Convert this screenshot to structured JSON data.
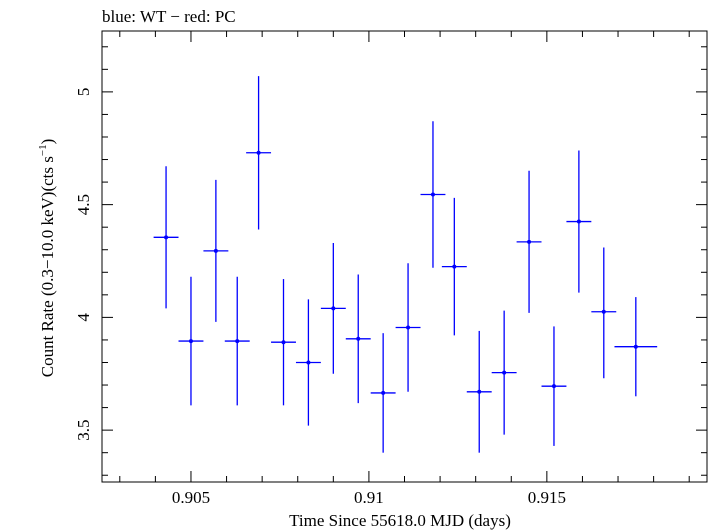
{
  "chart_data": {
    "type": "scatter",
    "title": "blue: WT − red: PC",
    "xlabel": "Time Since 55618.0 MJD (days)",
    "ylabel_main": "Count Rate (0.3−10.0 keV)(cts s",
    "ylabel_sup": "−1",
    "ylabel_close": ")",
    "xlim": [
      0.9025,
      0.9195
    ],
    "ylim": [
      3.27,
      5.27
    ],
    "xticks": [
      0.905,
      0.91,
      0.915
    ],
    "xtick_labels": [
      "0.905",
      "0.91",
      "0.915"
    ],
    "yticks": [
      3.5,
      4,
      4.5,
      5
    ],
    "ytick_labels": [
      "3.5",
      "4",
      "4.5",
      "5"
    ],
    "grid": false,
    "series": [
      {
        "color": "#0000ff",
        "points": [
          {
            "x": 0.9043,
            "y": 4.355,
            "xerr": 0.00035,
            "ylo": 4.04,
            "yhi": 4.67
          },
          {
            "x": 0.905,
            "y": 3.895,
            "xerr": 0.00035,
            "ylo": 3.61,
            "yhi": 4.18
          },
          {
            "x": 0.9057,
            "y": 4.295,
            "xerr": 0.00035,
            "ylo": 3.98,
            "yhi": 4.61
          },
          {
            "x": 0.9063,
            "y": 3.895,
            "xerr": 0.00035,
            "ylo": 3.61,
            "yhi": 4.18
          },
          {
            "x": 0.9069,
            "y": 4.73,
            "xerr": 0.00035,
            "ylo": 4.39,
            "yhi": 5.07
          },
          {
            "x": 0.9076,
            "y": 3.89,
            "xerr": 0.00035,
            "ylo": 3.61,
            "yhi": 4.17
          },
          {
            "x": 0.9083,
            "y": 3.8,
            "xerr": 0.00035,
            "ylo": 3.52,
            "yhi": 4.08
          },
          {
            "x": 0.909,
            "y": 4.04,
            "xerr": 0.00035,
            "ylo": 3.75,
            "yhi": 4.33
          },
          {
            "x": 0.9097,
            "y": 3.905,
            "xerr": 0.00035,
            "ylo": 3.62,
            "yhi": 4.19
          },
          {
            "x": 0.9104,
            "y": 3.665,
            "xerr": 0.00035,
            "ylo": 3.4,
            "yhi": 3.93
          },
          {
            "x": 0.9111,
            "y": 3.955,
            "xerr": 0.00035,
            "ylo": 3.67,
            "yhi": 4.24
          },
          {
            "x": 0.9118,
            "y": 4.545,
            "xerr": 0.00035,
            "ylo": 4.22,
            "yhi": 4.87
          },
          {
            "x": 0.9124,
            "y": 4.225,
            "xerr": 0.00035,
            "ylo": 3.92,
            "yhi": 4.53
          },
          {
            "x": 0.9131,
            "y": 3.67,
            "xerr": 0.00035,
            "ylo": 3.4,
            "yhi": 3.94
          },
          {
            "x": 0.9138,
            "y": 3.755,
            "xerr": 0.00035,
            "ylo": 3.48,
            "yhi": 4.03
          },
          {
            "x": 0.9145,
            "y": 4.335,
            "xerr": 0.00035,
            "ylo": 4.02,
            "yhi": 4.65
          },
          {
            "x": 0.9152,
            "y": 3.695,
            "xerr": 0.00035,
            "ylo": 3.43,
            "yhi": 3.96
          },
          {
            "x": 0.9159,
            "y": 4.425,
            "xerr": 0.00035,
            "ylo": 4.11,
            "yhi": 4.74
          },
          {
            "x": 0.9166,
            "y": 4.025,
            "xerr": 0.00035,
            "ylo": 3.73,
            "yhi": 4.31
          },
          {
            "x": 0.9175,
            "y": 3.87,
            "xerr": 0.0006,
            "ylo": 3.65,
            "yhi": 4.09
          }
        ]
      }
    ]
  }
}
